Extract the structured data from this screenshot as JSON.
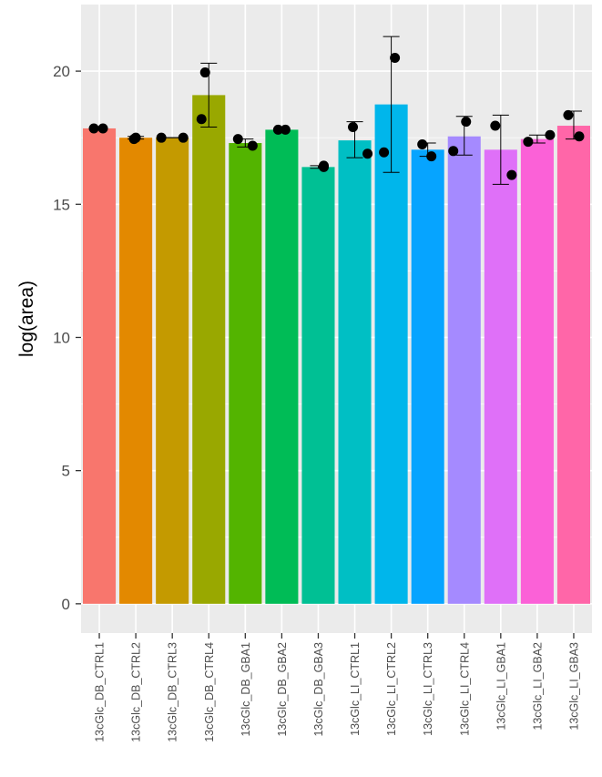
{
  "chart_data": {
    "type": "bar",
    "title": "",
    "xlabel": "",
    "ylabel": "log(area)",
    "ylim": [
      -1.1,
      22.5
    ],
    "yticks": [
      0,
      5,
      10,
      15,
      20
    ],
    "grid": true,
    "panel_background": "#EBEBEB",
    "grid_color": "#FFFFFF",
    "categories": [
      "13cGlc_DB_CTRL1",
      "13cGlc_DB_CTRL2",
      "13cGlc_DB_CTRL3",
      "13cGlc_DB_CTRL4",
      "13cGlc_DB_GBA1",
      "13cGlc_DB_GBA2",
      "13cGlc_DB_GBA3",
      "13cGlc_LI_CTRL1",
      "13cGlc_LI_CTRL2",
      "13cGlc_LI_CTRL3",
      "13cGlc_LI_CTRL4",
      "13cGlc_LI_GBA1",
      "13cGlc_LI_GBA2",
      "13cGlc_LI_GBA3"
    ],
    "values": [
      17.85,
      17.5,
      17.5,
      19.1,
      17.3,
      17.8,
      16.4,
      17.4,
      18.75,
      17.05,
      17.55,
      17.05,
      17.45,
      17.95
    ],
    "error_low": [
      17.85,
      17.45,
      17.5,
      17.9,
      17.15,
      17.8,
      16.35,
      16.75,
      16.2,
      16.8,
      16.85,
      15.75,
      17.3,
      17.45
    ],
    "error_high": [
      17.85,
      17.55,
      17.5,
      20.3,
      17.45,
      17.8,
      16.45,
      18.1,
      21.3,
      17.3,
      18.3,
      18.35,
      17.6,
      18.5
    ],
    "points": [
      [
        [
          -0.15,
          17.85
        ],
        [
          0.1,
          17.85
        ]
      ],
      [
        [
          -0.05,
          17.45
        ],
        [
          0.0,
          17.5
        ]
      ],
      [
        [
          -0.3,
          17.5
        ],
        [
          0.3,
          17.5
        ]
      ],
      [
        [
          -0.2,
          18.2
        ],
        [
          -0.1,
          19.95
        ]
      ],
      [
        [
          -0.2,
          17.45
        ],
        [
          0.2,
          17.2
        ]
      ],
      [
        [
          -0.1,
          17.8
        ],
        [
          0.1,
          17.8
        ]
      ],
      [
        [
          0.15,
          16.4
        ],
        [
          0.15,
          16.45
        ]
      ],
      [
        [
          0.35,
          16.9
        ],
        [
          -0.05,
          17.9
        ]
      ],
      [
        [
          -0.2,
          16.95
        ],
        [
          0.1,
          20.5
        ]
      ],
      [
        [
          -0.15,
          17.25
        ],
        [
          0.1,
          16.8
        ]
      ],
      [
        [
          0.05,
          18.1
        ],
        [
          -0.3,
          17.0
        ]
      ],
      [
        [
          -0.15,
          17.95
        ],
        [
          0.3,
          16.1
        ]
      ],
      [
        [
          -0.25,
          17.35
        ],
        [
          0.35,
          17.6
        ]
      ],
      [
        [
          -0.15,
          18.35
        ],
        [
          0.15,
          17.55
        ]
      ]
    ],
    "colors": [
      "#F8766D",
      "#E38900",
      "#C49A00",
      "#99A800",
      "#53B400",
      "#00BC56",
      "#00C094",
      "#00BFC4",
      "#00B6EB",
      "#06A4FF",
      "#A58AFF",
      "#DF70F8",
      "#FB61D7",
      "#FF66A8"
    ]
  }
}
